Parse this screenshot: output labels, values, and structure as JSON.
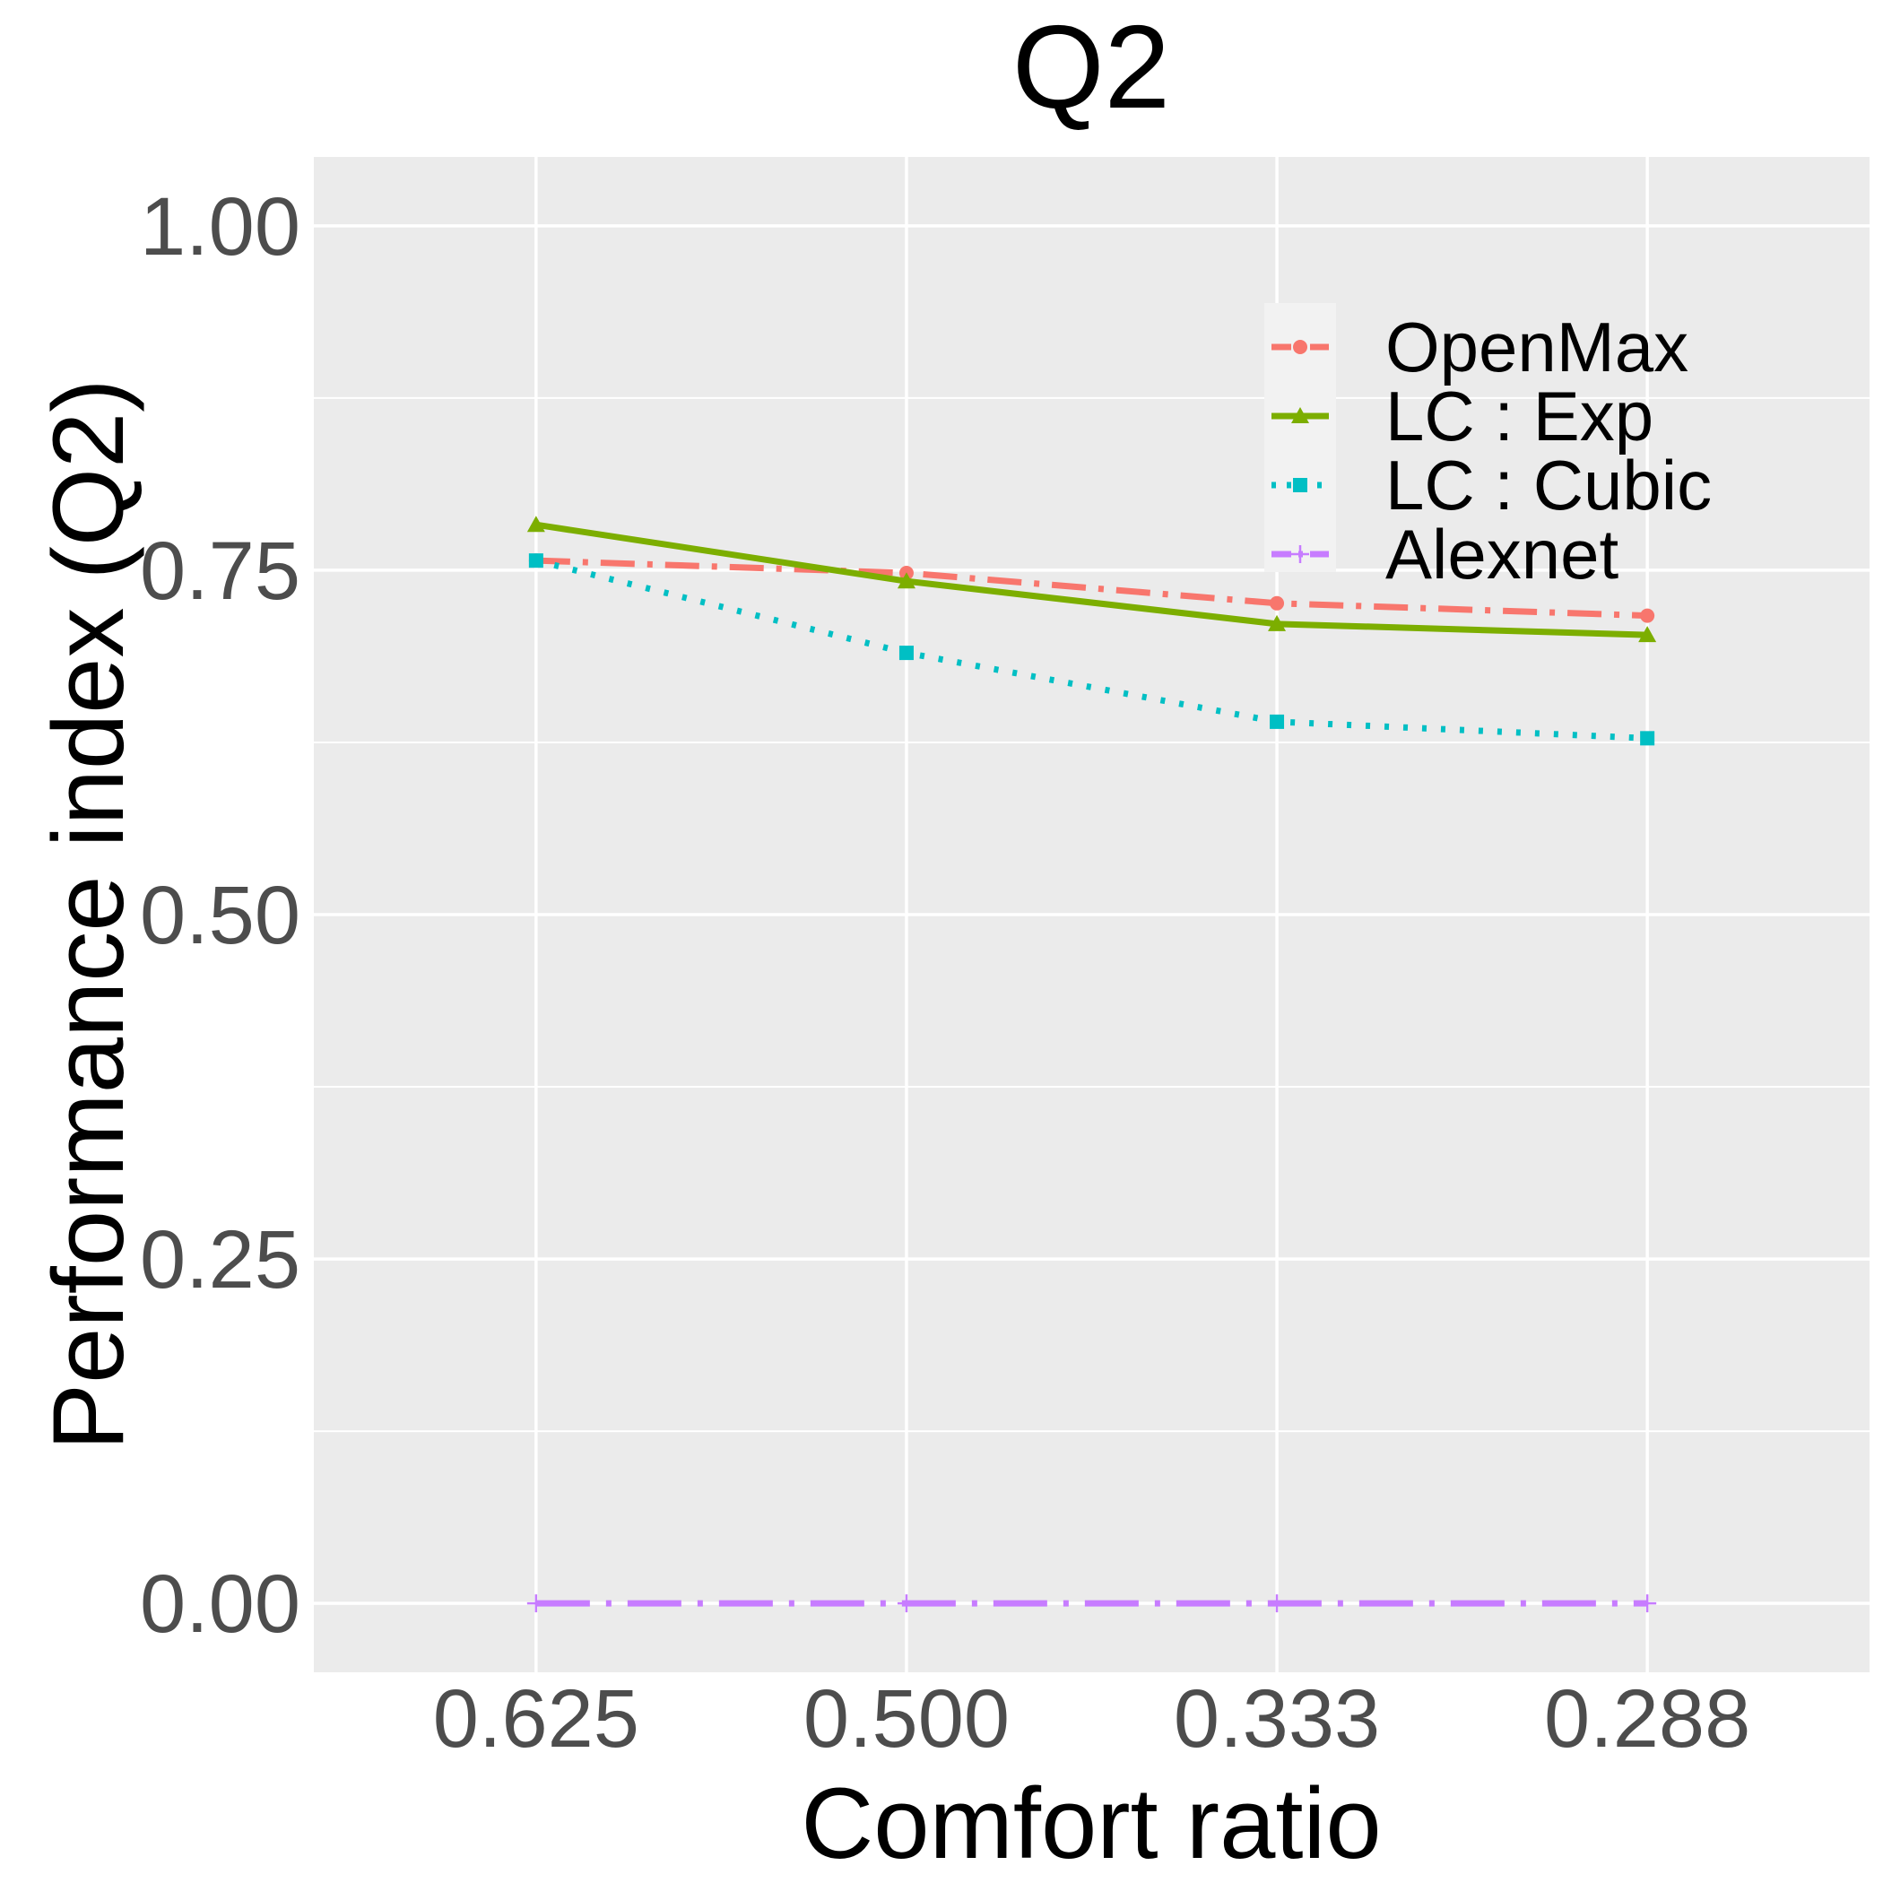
{
  "chart_data": {
    "type": "line",
    "title": "Q2",
    "xlabel": "Comfort ratio",
    "ylabel": "Performance index (Q2)",
    "categories": [
      "0.625",
      "0.500",
      "0.333",
      "0.288"
    ],
    "ylim": [
      -0.05,
      1.05
    ],
    "yticks": [
      "0.00",
      "0.25",
      "0.50",
      "0.75",
      "1.00"
    ],
    "grid": true,
    "legend_position": "top-right",
    "series": [
      {
        "name": "OpenMax",
        "values": [
          0.757,
          0.748,
          0.726,
          0.717
        ],
        "color": "#F8766D",
        "line_style": "dashdot",
        "marker": "circle"
      },
      {
        "name": "LC : Exp",
        "values": [
          0.783,
          0.742,
          0.711,
          0.703
        ],
        "color": "#7CAE00",
        "line_style": "solid",
        "marker": "triangle"
      },
      {
        "name": "LC : Cubic",
        "values": [
          0.757,
          0.69,
          0.64,
          0.628
        ],
        "color": "#00BFC4",
        "line_style": "dotted",
        "marker": "square"
      },
      {
        "name": "Alexnet",
        "values": [
          0.0,
          0.0,
          0.0,
          0.0
        ],
        "color": "#C77CFF",
        "line_style": "longdash-dot",
        "marker": "plus"
      }
    ]
  }
}
